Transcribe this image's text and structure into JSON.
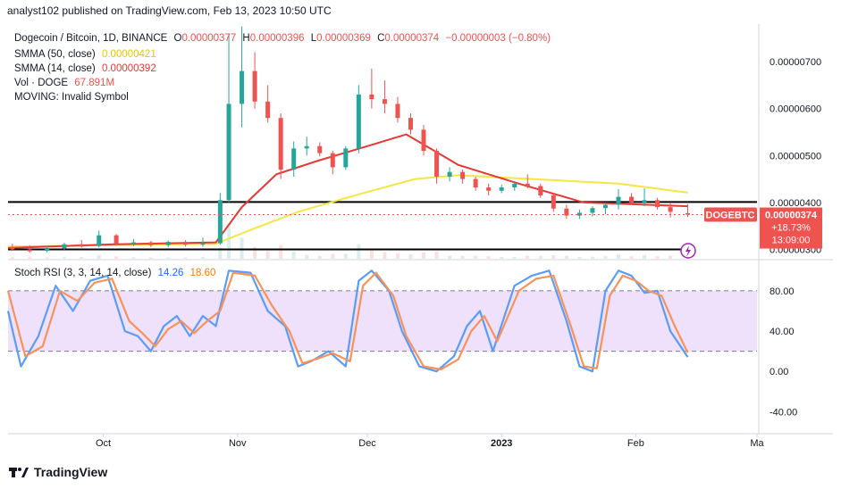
{
  "header": {
    "published_by": "analyst102 published on TradingView.com, Feb 13, 2023 10:50 UTC"
  },
  "legend": {
    "symbol": "Dogecoin / Bitcoin, 1D, BINANCE",
    "o_label": "O",
    "o_value": "0.00000377",
    "h_label": "H",
    "h_value": "0.00000396",
    "l_label": "L",
    "l_value": "0.00000369",
    "c_label": "C",
    "c_value": "0.00000374",
    "change": "−0.00000003 (−0.80%)",
    "smma50_label": "SMMA (50, close)",
    "smma50_value": "0.00000421",
    "smma14_label": "SMMA (14, close)",
    "smma14_value": "0.00000392",
    "vol_label": "Vol · DOGE",
    "vol_value": "67.891M",
    "moving_label": "MOVING: Invalid Symbol",
    "stoch_label": "Stoch RSI (3, 3, 14, 14, close)",
    "stoch_k": "14.26",
    "stoch_d": "18.60"
  },
  "price_axis": {
    "ticks": [
      "0.00000700",
      "0.00000600",
      "0.00000500",
      "0.00000400",
      "0.00000300"
    ],
    "current_symbol": "DOGEBTC",
    "current_price": "0.00000374",
    "current_change": "+18.73%",
    "countdown": "13:09:00"
  },
  "stoch_axis": {
    "ticks": [
      "80.00",
      "40.00",
      "0.00",
      "-40.00"
    ]
  },
  "time_axis": {
    "ticks": [
      "Oct",
      "Nov",
      "Dec",
      "2023",
      "Feb",
      "Ma"
    ]
  },
  "footer": {
    "brand": "TradingView"
  },
  "colors": {
    "up": "#26a69a",
    "down": "#ef5350",
    "smma50": "#f5e642",
    "smma14": "#e53935",
    "stoch_k": "#5b9cf6",
    "stoch_d": "#f7935a",
    "stoch_band": "#e9d5fb"
  },
  "chart_data": [
    {
      "type": "candlestick",
      "title": "Dogecoin / Bitcoin, 1D, BINANCE",
      "x_range": [
        "2022-09-09",
        "2023-02-13"
      ],
      "ylim": [
        2.8e-06,
        7.8e-06
      ],
      "horizontal_lines": [
        4.01e-06,
        3e-06
      ],
      "candles": [
        {
          "date": "2022-09-10",
          "o": 3.05e-06,
          "h": 3.12e-06,
          "l": 2.97e-06,
          "c": 3e-06
        },
        {
          "date": "2022-09-14",
          "o": 3e-06,
          "h": 3.09e-06,
          "l": 2.93e-06,
          "c": 2.96e-06
        },
        {
          "date": "2022-09-18",
          "o": 2.97e-06,
          "h": 3.07e-06,
          "l": 2.94e-06,
          "c": 3.03e-06
        },
        {
          "date": "2022-09-22",
          "o": 3.02e-06,
          "h": 3.14e-06,
          "l": 2.99e-06,
          "c": 3.11e-06
        },
        {
          "date": "2022-09-26",
          "o": 3.11e-06,
          "h": 3.2e-06,
          "l": 3.04e-06,
          "c": 3.06e-06
        },
        {
          "date": "2022-09-30",
          "o": 3.07e-06,
          "h": 3.4e-06,
          "l": 3.04e-06,
          "c": 3.3e-06
        },
        {
          "date": "2022-10-04",
          "o": 3.3e-06,
          "h": 3.33e-06,
          "l": 3.08e-06,
          "c": 3.12e-06
        },
        {
          "date": "2022-10-08",
          "o": 3.12e-06,
          "h": 3.22e-06,
          "l": 3.07e-06,
          "c": 3.15e-06
        },
        {
          "date": "2022-10-12",
          "o": 3.15e-06,
          "h": 3.18e-06,
          "l": 3.05e-06,
          "c": 3.09e-06
        },
        {
          "date": "2022-10-16",
          "o": 3.09e-06,
          "h": 3.19e-06,
          "l": 3.05e-06,
          "c": 3.16e-06
        },
        {
          "date": "2022-10-20",
          "o": 3.16e-06,
          "h": 3.2e-06,
          "l": 3.06e-06,
          "c": 3.1e-06
        },
        {
          "date": "2022-10-24",
          "o": 3.1e-06,
          "h": 3.25e-06,
          "l": 3.06e-06,
          "c": 3.13e-06
        },
        {
          "date": "2022-10-28",
          "o": 3.13e-06,
          "h": 4.2e-06,
          "l": 3.1e-06,
          "c": 4.05e-06
        },
        {
          "date": "2022-10-30",
          "o": 4.05e-06,
          "h": 7.6e-06,
          "l": 4e-06,
          "c": 6.1e-06
        },
        {
          "date": "2022-11-02",
          "o": 6.1e-06,
          "h": 7.75e-06,
          "l": 5.6e-06,
          "c": 6.8e-06
        },
        {
          "date": "2022-11-05",
          "o": 6.8e-06,
          "h": 7.2e-06,
          "l": 6e-06,
          "c": 6.15e-06
        },
        {
          "date": "2022-11-08",
          "o": 6.15e-06,
          "h": 6.5e-06,
          "l": 5.7e-06,
          "c": 5.8e-06
        },
        {
          "date": "2022-11-11",
          "o": 5.8e-06,
          "h": 5.9e-06,
          "l": 4.5e-06,
          "c": 4.7e-06
        },
        {
          "date": "2022-11-14",
          "o": 4.7e-06,
          "h": 5.3e-06,
          "l": 4.55e-06,
          "c": 5.15e-06
        },
        {
          "date": "2022-11-17",
          "o": 5.15e-06,
          "h": 5.4e-06,
          "l": 5e-06,
          "c": 5.2e-06
        },
        {
          "date": "2022-11-20",
          "o": 5.2e-06,
          "h": 5.28e-06,
          "l": 4.98e-06,
          "c": 5.05e-06
        },
        {
          "date": "2022-11-23",
          "o": 5.05e-06,
          "h": 5.1e-06,
          "l": 4.6e-06,
          "c": 4.75e-06
        },
        {
          "date": "2022-11-26",
          "o": 4.75e-06,
          "h": 5.2e-06,
          "l": 4.7e-06,
          "c": 5.15e-06
        },
        {
          "date": "2022-11-29",
          "o": 5.15e-06,
          "h": 6.5e-06,
          "l": 5.05e-06,
          "c": 6.3e-06
        },
        {
          "date": "2022-12-02",
          "o": 6.3e-06,
          "h": 6.85e-06,
          "l": 6e-06,
          "c": 6.2e-06
        },
        {
          "date": "2022-12-05",
          "o": 6.2e-06,
          "h": 6.6e-06,
          "l": 5.9e-06,
          "c": 6.1e-06
        },
        {
          "date": "2022-12-08",
          "o": 6.1e-06,
          "h": 6.25e-06,
          "l": 5.7e-06,
          "c": 5.8e-06
        },
        {
          "date": "2022-12-11",
          "o": 5.8e-06,
          "h": 5.9e-06,
          "l": 5.45e-06,
          "c": 5.55e-06
        },
        {
          "date": "2022-12-14",
          "o": 5.55e-06,
          "h": 5.65e-06,
          "l": 5e-06,
          "c": 5.1e-06
        },
        {
          "date": "2022-12-17",
          "o": 5.1e-06,
          "h": 5.15e-06,
          "l": 4.4e-06,
          "c": 4.55e-06
        },
        {
          "date": "2022-12-20",
          "o": 4.55e-06,
          "h": 4.75e-06,
          "l": 4.45e-06,
          "c": 4.65e-06
        },
        {
          "date": "2022-12-23",
          "o": 4.65e-06,
          "h": 4.7e-06,
          "l": 4.4e-06,
          "c": 4.5e-06
        },
        {
          "date": "2022-12-26",
          "o": 4.5e-06,
          "h": 4.55e-06,
          "l": 4.25e-06,
          "c": 4.32e-06
        },
        {
          "date": "2022-12-29",
          "o": 4.32e-06,
          "h": 4.4e-06,
          "l": 4.15e-06,
          "c": 4.25e-06
        },
        {
          "date": "2023-01-01",
          "o": 4.25e-06,
          "h": 4.38e-06,
          "l": 4.2e-06,
          "c": 4.32e-06
        },
        {
          "date": "2023-01-04",
          "o": 4.32e-06,
          "h": 4.45e-06,
          "l": 4.25e-06,
          "c": 4.4e-06
        },
        {
          "date": "2023-01-07",
          "o": 4.4e-06,
          "h": 4.6e-06,
          "l": 4.3e-06,
          "c": 4.35e-06
        },
        {
          "date": "2023-01-10",
          "o": 4.35e-06,
          "h": 4.4e-06,
          "l": 4.1e-06,
          "c": 4.15e-06
        },
        {
          "date": "2023-01-13",
          "o": 4.15e-06,
          "h": 4.18e-06,
          "l": 3.8e-06,
          "c": 3.87e-06
        },
        {
          "date": "2023-01-16",
          "o": 3.87e-06,
          "h": 3.95e-06,
          "l": 3.65e-06,
          "c": 3.72e-06
        },
        {
          "date": "2023-01-19",
          "o": 3.72e-06,
          "h": 3.85e-06,
          "l": 3.65e-06,
          "c": 3.78e-06
        },
        {
          "date": "2023-01-22",
          "o": 3.78e-06,
          "h": 3.92e-06,
          "l": 3.7e-06,
          "c": 3.88e-06
        },
        {
          "date": "2023-01-25",
          "o": 3.88e-06,
          "h": 4e-06,
          "l": 3.75e-06,
          "c": 3.95e-06
        },
        {
          "date": "2023-01-28",
          "o": 3.95e-06,
          "h": 4.28e-06,
          "l": 3.85e-06,
          "c": 4.12e-06
        },
        {
          "date": "2023-01-31",
          "o": 4.12e-06,
          "h": 4.2e-06,
          "l": 3.95e-06,
          "c": 4e-06
        },
        {
          "date": "2023-02-03",
          "o": 4e-06,
          "h": 4.3e-06,
          "l": 3.92e-06,
          "c": 4.05e-06
        },
        {
          "date": "2023-02-06",
          "o": 4.05e-06,
          "h": 4.1e-06,
          "l": 3.85e-06,
          "c": 3.9e-06
        },
        {
          "date": "2023-02-09",
          "o": 3.9e-06,
          "h": 3.98e-06,
          "l": 3.68e-06,
          "c": 3.8e-06
        },
        {
          "date": "2023-02-13",
          "o": 3.77e-06,
          "h": 3.96e-06,
          "l": 3.69e-06,
          "c": 3.74e-06
        }
      ],
      "series": [
        {
          "name": "SMMA (50, close)",
          "points": [
            [
              "2022-09-09",
              3.06e-06
            ],
            [
              "2022-10-04",
              3.09e-06
            ],
            [
              "2022-10-27",
              3.12e-06
            ],
            [
              "2022-11-05",
              3.45e-06
            ],
            [
              "2022-11-15",
              3.8e-06
            ],
            [
              "2022-11-30",
              4.2e-06
            ],
            [
              "2022-12-12",
              4.5e-06
            ],
            [
              "2022-12-22",
              4.58e-06
            ],
            [
              "2023-01-08",
              4.5e-06
            ],
            [
              "2023-01-28",
              4.4e-06
            ],
            [
              "2023-02-13",
              4.21e-06
            ]
          ]
        },
        {
          "name": "SMMA (14, close)",
          "points": [
            [
              "2022-09-09",
              3.03e-06
            ],
            [
              "2022-10-04",
              3.11e-06
            ],
            [
              "2022-10-27",
              3.15e-06
            ],
            [
              "2022-11-02",
              3.9e-06
            ],
            [
              "2022-11-10",
              4.6e-06
            ],
            [
              "2022-11-20",
              4.9e-06
            ],
            [
              "2022-12-01",
              5.2e-06
            ],
            [
              "2022-12-10",
              5.45e-06
            ],
            [
              "2022-12-22",
              4.8e-06
            ],
            [
              "2023-01-05",
              4.4e-06
            ],
            [
              "2023-01-20",
              4e-06
            ],
            [
              "2023-02-13",
              3.92e-06
            ]
          ]
        }
      ]
    },
    {
      "type": "line",
      "title": "Stoch RSI (3, 3, 14, 14, close)",
      "ylim": [
        -60,
        110
      ],
      "bands": [
        20,
        80
      ],
      "series": [
        {
          "name": "K",
          "points": [
            [
              "2022-09-09",
              60
            ],
            [
              "2022-09-12",
              5
            ],
            [
              "2022-09-16",
              35
            ],
            [
              "2022-09-20",
              85
            ],
            [
              "2022-09-24",
              60
            ],
            [
              "2022-09-28",
              90
            ],
            [
              "2022-10-02",
              95
            ],
            [
              "2022-10-06",
              40
            ],
            [
              "2022-10-09",
              35
            ],
            [
              "2022-10-12",
              20
            ],
            [
              "2022-10-15",
              45
            ],
            [
              "2022-10-18",
              55
            ],
            [
              "2022-10-21",
              35
            ],
            [
              "2022-10-24",
              55
            ],
            [
              "2022-10-27",
              45
            ],
            [
              "2022-10-30",
              100
            ],
            [
              "2022-11-04",
              98
            ],
            [
              "2022-11-08",
              60
            ],
            [
              "2022-11-12",
              45
            ],
            [
              "2022-11-15",
              5
            ],
            [
              "2022-11-18",
              10
            ],
            [
              "2022-11-22",
              20
            ],
            [
              "2022-11-26",
              5
            ],
            [
              "2022-11-29",
              90
            ],
            [
              "2022-12-02",
              100
            ],
            [
              "2022-12-06",
              80
            ],
            [
              "2022-12-09",
              40
            ],
            [
              "2022-12-13",
              5
            ],
            [
              "2022-12-17",
              0
            ],
            [
              "2022-12-21",
              15
            ],
            [
              "2022-12-24",
              45
            ],
            [
              "2022-12-27",
              60
            ],
            [
              "2022-12-30",
              20
            ],
            [
              "2023-01-04",
              85
            ],
            [
              "2023-01-08",
              95
            ],
            [
              "2023-01-12",
              100
            ],
            [
              "2023-01-16",
              50
            ],
            [
              "2023-01-19",
              5
            ],
            [
              "2023-01-22",
              0
            ],
            [
              "2023-01-25",
              80
            ],
            [
              "2023-01-28",
              100
            ],
            [
              "2023-01-31",
              95
            ],
            [
              "2023-02-03",
              78
            ],
            [
              "2023-02-06",
              80
            ],
            [
              "2023-02-09",
              40
            ],
            [
              "2023-02-13",
              14.26
            ]
          ]
        },
        {
          "name": "D",
          "points": [
            [
              "2022-09-09",
              80
            ],
            [
              "2022-09-13",
              15
            ],
            [
              "2022-09-17",
              25
            ],
            [
              "2022-09-21",
              80
            ],
            [
              "2022-09-25",
              70
            ],
            [
              "2022-09-29",
              88
            ],
            [
              "2022-10-03",
              92
            ],
            [
              "2022-10-07",
              50
            ],
            [
              "2022-10-10",
              38
            ],
            [
              "2022-10-13",
              25
            ],
            [
              "2022-10-16",
              42
            ],
            [
              "2022-10-19",
              50
            ],
            [
              "2022-10-22",
              38
            ],
            [
              "2022-10-25",
              50
            ],
            [
              "2022-10-28",
              60
            ],
            [
              "2022-10-31",
              98
            ],
            [
              "2022-11-05",
              95
            ],
            [
              "2022-11-09",
              65
            ],
            [
              "2022-11-13",
              40
            ],
            [
              "2022-11-16",
              8
            ],
            [
              "2022-11-19",
              12
            ],
            [
              "2022-11-23",
              18
            ],
            [
              "2022-11-27",
              10
            ],
            [
              "2022-11-30",
              85
            ],
            [
              "2022-12-03",
              98
            ],
            [
              "2022-12-07",
              75
            ],
            [
              "2022-12-10",
              35
            ],
            [
              "2022-12-14",
              5
            ],
            [
              "2022-12-18",
              2
            ],
            [
              "2022-12-22",
              12
            ],
            [
              "2022-12-25",
              40
            ],
            [
              "2022-12-28",
              55
            ],
            [
              "2022-12-31",
              30
            ],
            [
              "2023-01-05",
              80
            ],
            [
              "2023-01-09",
              92
            ],
            [
              "2023-01-13",
              95
            ],
            [
              "2023-01-17",
              45
            ],
            [
              "2023-01-20",
              5
            ],
            [
              "2023-01-23",
              3
            ],
            [
              "2023-01-26",
              75
            ],
            [
              "2023-01-29",
              95
            ],
            [
              "2023-02-01",
              90
            ],
            [
              "2023-02-04",
              80
            ],
            [
              "2023-02-07",
              75
            ],
            [
              "2023-02-10",
              45
            ],
            [
              "2023-02-13",
              18.6
            ]
          ]
        }
      ]
    }
  ]
}
